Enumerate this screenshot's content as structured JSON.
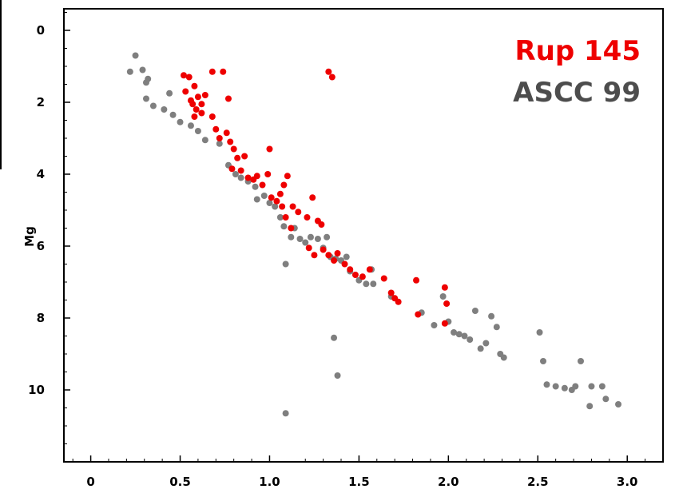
{
  "chart_data": {
    "type": "scatter",
    "title": "",
    "xlabel": "",
    "ylabel": "Mg",
    "xlim": [
      -0.15,
      3.2
    ],
    "ylim": [
      12.0,
      -0.6
    ],
    "y_inverted": true,
    "grid": false,
    "legend_position": "top-right",
    "x_ticks": [
      0,
      0.5,
      1.0,
      1.5,
      2.0,
      2.5,
      3.0
    ],
    "x_tick_labels": [
      "0",
      "0.5",
      "1.0",
      "1.5",
      "2.0",
      "2.5",
      "3.0"
    ],
    "y_ticks": [
      0,
      2,
      4,
      6,
      8,
      10
    ],
    "y_tick_labels": [
      "0",
      "2",
      "4",
      "6",
      "8",
      "10"
    ],
    "series": [
      {
        "name": "ASCC 99",
        "color": "#7f7f7f",
        "points": [
          [
            0.22,
            1.15
          ],
          [
            0.25,
            0.7
          ],
          [
            0.29,
            1.1
          ],
          [
            0.31,
            1.45
          ],
          [
            0.32,
            1.35
          ],
          [
            0.31,
            1.9
          ],
          [
            0.35,
            2.1
          ],
          [
            0.41,
            2.2
          ],
          [
            0.44,
            1.75
          ],
          [
            0.46,
            2.35
          ],
          [
            0.5,
            2.55
          ],
          [
            0.56,
            2.65
          ],
          [
            0.6,
            2.8
          ],
          [
            0.64,
            3.05
          ],
          [
            0.72,
            3.15
          ],
          [
            0.77,
            3.75
          ],
          [
            0.81,
            4.0
          ],
          [
            0.84,
            4.1
          ],
          [
            0.88,
            4.2
          ],
          [
            0.92,
            4.35
          ],
          [
            0.93,
            4.7
          ],
          [
            0.97,
            4.6
          ],
          [
            1.0,
            4.8
          ],
          [
            1.03,
            4.9
          ],
          [
            1.06,
            5.2
          ],
          [
            1.08,
            5.45
          ],
          [
            1.12,
            5.75
          ],
          [
            1.14,
            5.5
          ],
          [
            1.17,
            5.8
          ],
          [
            1.2,
            5.9
          ],
          [
            1.23,
            5.75
          ],
          [
            1.27,
            5.8
          ],
          [
            1.3,
            6.05
          ],
          [
            1.32,
            5.75
          ],
          [
            1.34,
            6.3
          ],
          [
            1.37,
            6.35
          ],
          [
            1.4,
            6.4
          ],
          [
            1.43,
            6.3
          ],
          [
            1.45,
            6.7
          ],
          [
            1.5,
            6.95
          ],
          [
            1.54,
            7.05
          ],
          [
            1.58,
            7.05
          ],
          [
            1.57,
            6.65
          ],
          [
            1.68,
            7.4
          ],
          [
            1.85,
            7.85
          ],
          [
            1.92,
            8.2
          ],
          [
            1.97,
            7.4
          ],
          [
            2.0,
            8.1
          ],
          [
            2.03,
            8.4
          ],
          [
            2.06,
            8.45
          ],
          [
            2.09,
            8.5
          ],
          [
            2.12,
            8.6
          ],
          [
            2.15,
            7.8
          ],
          [
            2.18,
            8.85
          ],
          [
            2.21,
            8.7
          ],
          [
            2.24,
            7.95
          ],
          [
            2.27,
            8.25
          ],
          [
            2.29,
            9.0
          ],
          [
            2.31,
            9.1
          ],
          [
            2.51,
            8.4
          ],
          [
            2.53,
            9.2
          ],
          [
            2.55,
            9.85
          ],
          [
            2.6,
            9.9
          ],
          [
            2.65,
            9.95
          ],
          [
            2.69,
            10.0
          ],
          [
            2.71,
            9.9
          ],
          [
            2.74,
            9.2
          ],
          [
            2.79,
            10.45
          ],
          [
            2.8,
            9.9
          ],
          [
            2.86,
            9.9
          ],
          [
            2.88,
            10.25
          ],
          [
            2.95,
            10.4
          ],
          [
            1.09,
            6.5
          ],
          [
            1.09,
            10.65
          ],
          [
            1.36,
            8.55
          ],
          [
            1.38,
            9.6
          ]
        ]
      },
      {
        "name": "Rup 145",
        "color": "#ee0000",
        "points": [
          [
            0.52,
            1.25
          ],
          [
            0.55,
            1.3
          ],
          [
            0.58,
            1.55
          ],
          [
            0.6,
            1.85
          ],
          [
            0.53,
            1.7
          ],
          [
            0.56,
            1.95
          ],
          [
            0.57,
            2.05
          ],
          [
            0.59,
            2.2
          ],
          [
            0.62,
            2.05
          ],
          [
            0.64,
            1.8
          ],
          [
            0.62,
            2.3
          ],
          [
            0.58,
            2.4
          ],
          [
            0.68,
            1.15
          ],
          [
            0.74,
            1.15
          ],
          [
            0.77,
            1.9
          ],
          [
            0.68,
            2.4
          ],
          [
            0.7,
            2.75
          ],
          [
            0.72,
            3.0
          ],
          [
            0.76,
            2.85
          ],
          [
            0.78,
            3.1
          ],
          [
            0.8,
            3.3
          ],
          [
            0.82,
            3.55
          ],
          [
            0.86,
            3.5
          ],
          [
            0.79,
            3.85
          ],
          [
            0.84,
            3.9
          ],
          [
            0.88,
            4.1
          ],
          [
            0.91,
            4.15
          ],
          [
            0.96,
            4.3
          ],
          [
            0.99,
            4.0
          ],
          [
            1.0,
            3.3
          ],
          [
            1.01,
            4.65
          ],
          [
            1.04,
            4.75
          ],
          [
            1.07,
            4.9
          ],
          [
            1.09,
            5.2
          ],
          [
            1.12,
            5.5
          ],
          [
            1.08,
            4.3
          ],
          [
            1.1,
            4.05
          ],
          [
            1.13,
            4.9
          ],
          [
            1.16,
            5.05
          ],
          [
            1.21,
            5.2
          ],
          [
            1.24,
            4.65
          ],
          [
            1.27,
            5.3
          ],
          [
            1.29,
            5.4
          ],
          [
            1.3,
            6.1
          ],
          [
            1.22,
            6.05
          ],
          [
            1.25,
            6.25
          ],
          [
            1.33,
            6.25
          ],
          [
            1.36,
            6.4
          ],
          [
            1.38,
            6.2
          ],
          [
            1.42,
            6.5
          ],
          [
            1.45,
            6.65
          ],
          [
            1.48,
            6.8
          ],
          [
            1.52,
            6.85
          ],
          [
            1.56,
            6.65
          ],
          [
            1.64,
            6.9
          ],
          [
            1.68,
            7.3
          ],
          [
            1.7,
            7.45
          ],
          [
            1.72,
            7.55
          ],
          [
            1.82,
            6.95
          ],
          [
            1.83,
            7.9
          ],
          [
            1.98,
            7.15
          ],
          [
            1.99,
            7.6
          ],
          [
            1.98,
            8.15
          ],
          [
            1.33,
            1.15
          ],
          [
            1.35,
            1.3
          ],
          [
            1.06,
            4.55
          ],
          [
            0.93,
            4.05
          ]
        ]
      }
    ]
  }
}
